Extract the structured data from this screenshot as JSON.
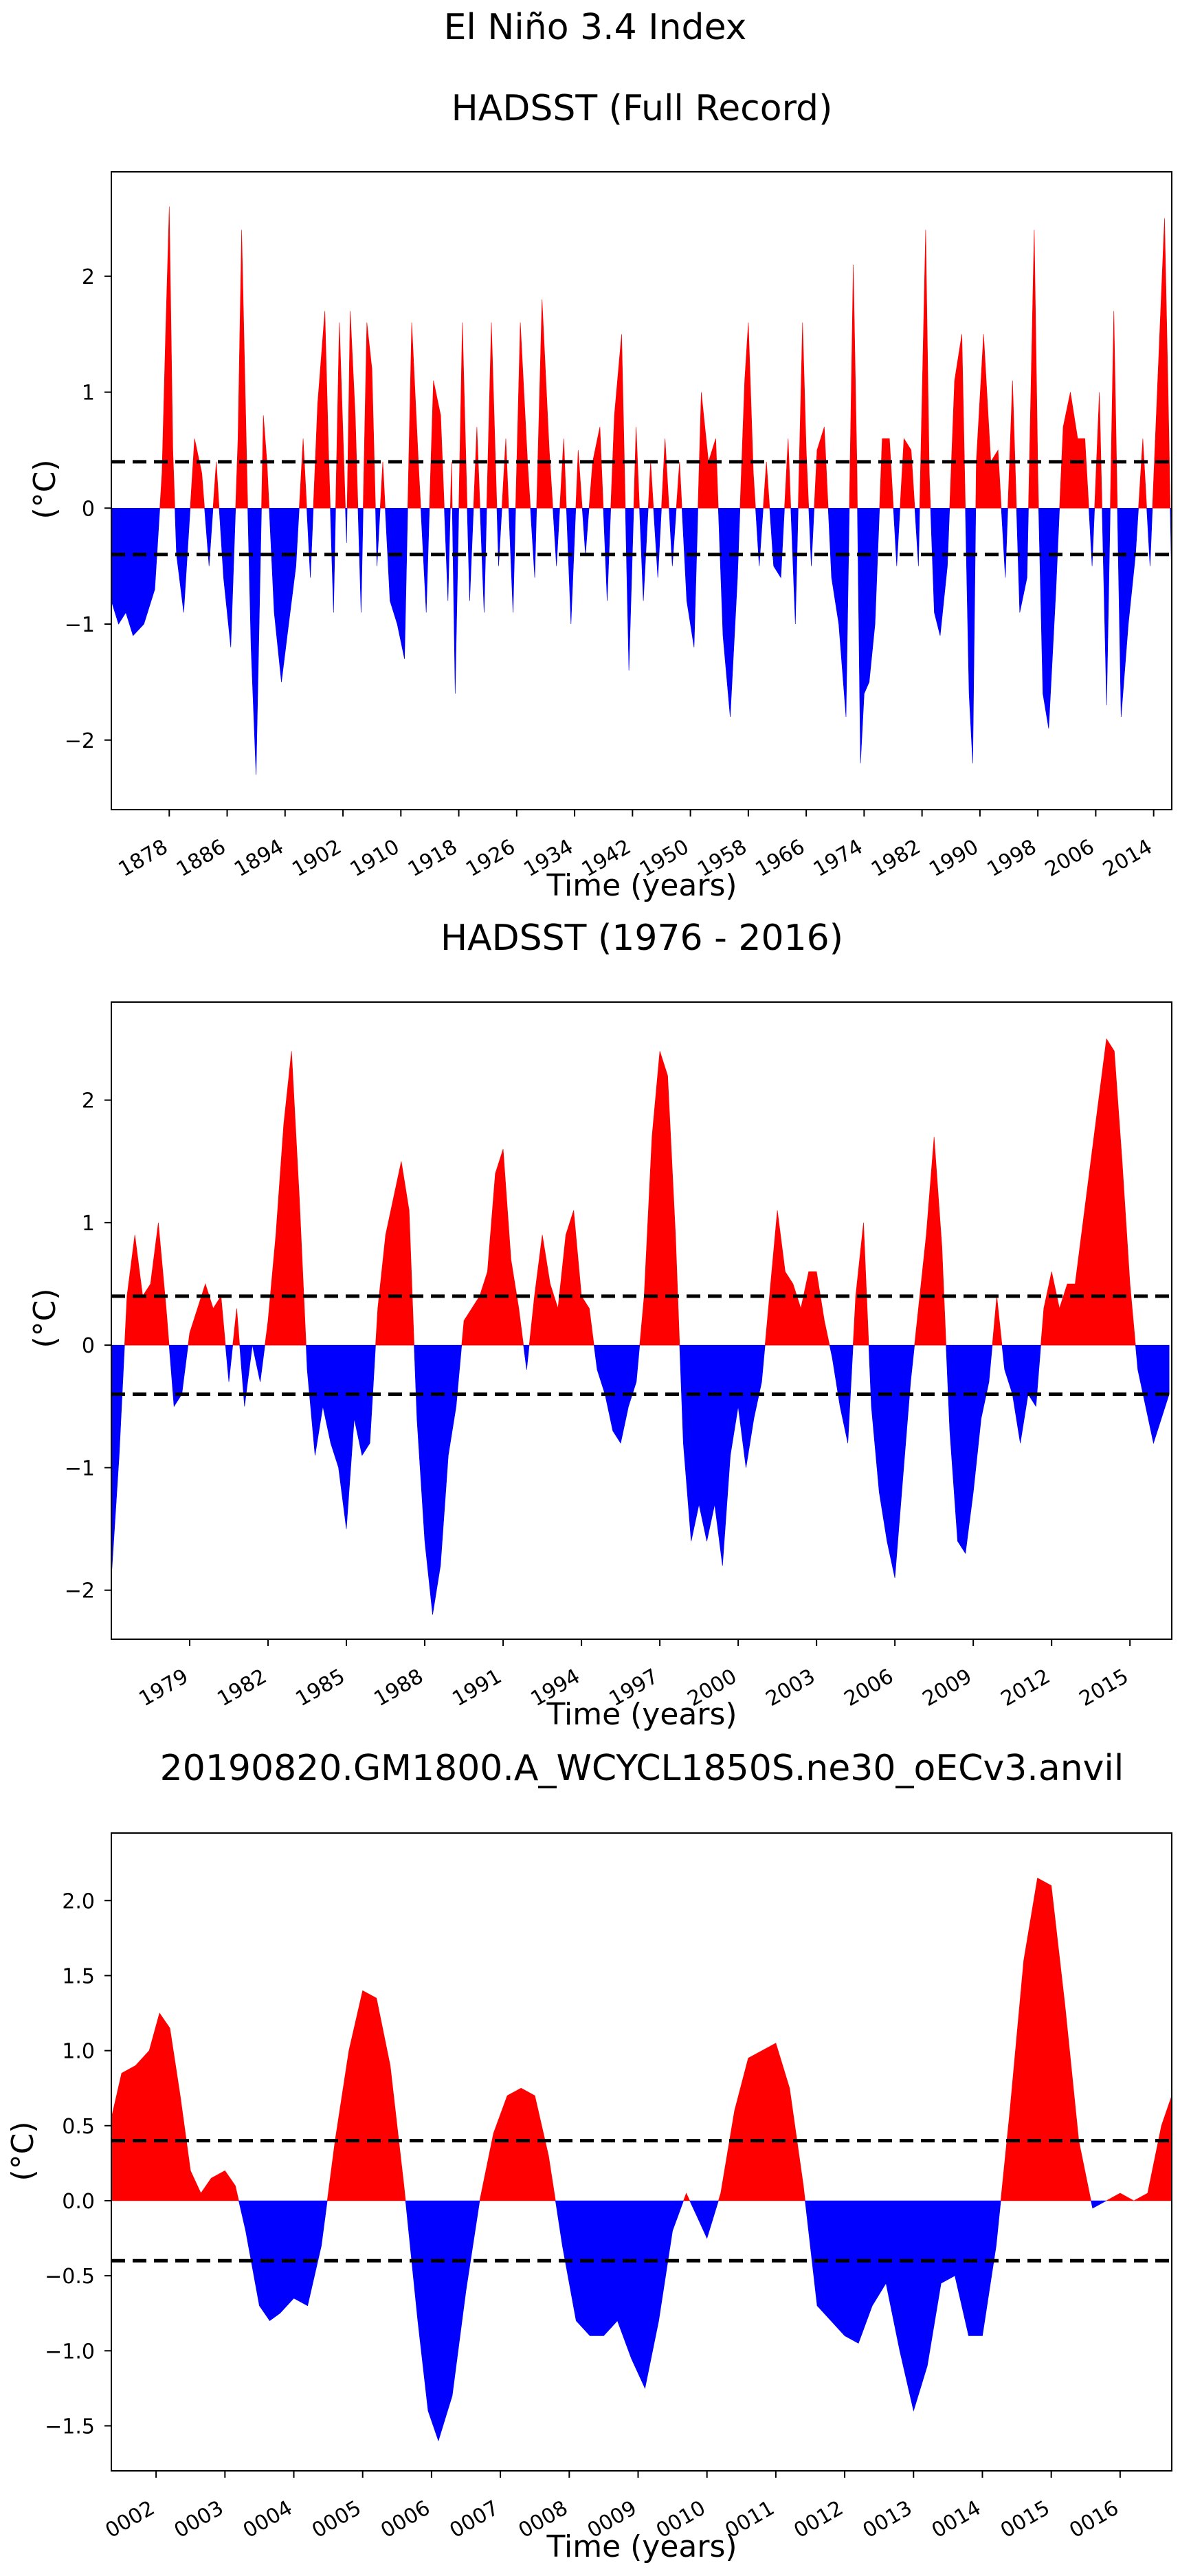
{
  "figure": {
    "suptitle": "El Niño 3.4 Index"
  },
  "colors": {
    "positive": "#ff0000",
    "negative": "#0000ff",
    "threshold_line": "#000000",
    "background": "#ffffff"
  },
  "chart_data": [
    {
      "type": "area",
      "title": "HADSST (Full Record)",
      "xlabel": "Time (years)",
      "ylabel": "(°C)",
      "xlim": [
        1870.0,
        2016.5
      ],
      "ylim": [
        -2.6,
        2.9
      ],
      "yticks": [
        -2,
        -1,
        0,
        1,
        2
      ],
      "ytick_labels": [
        "−2",
        "−1",
        "0",
        "1",
        "2"
      ],
      "xticks": [
        1878,
        1886,
        1894,
        1902,
        1910,
        1918,
        1926,
        1934,
        1942,
        1950,
        1958,
        1966,
        1974,
        1982,
        1990,
        1998,
        2006,
        2014
      ],
      "xtick_labels": [
        "1878",
        "1886",
        "1894",
        "1902",
        "1910",
        "1918",
        "1926",
        "1934",
        "1942",
        "1950",
        "1958",
        "1966",
        "1974",
        "1982",
        "1990",
        "1998",
        "2006",
        "2014"
      ],
      "thresholds": [
        0.4,
        -0.4
      ],
      "grid": false,
      "series": [
        {
          "x": [
            1870.0,
            1871.0,
            1872.0,
            1873.0,
            1874.5,
            1876.0,
            1877.0,
            1877.5,
            1878.0,
            1878.5,
            1879.0,
            1880.0,
            1880.7,
            1881.5,
            1882.5,
            1883.5,
            1884.5,
            1885.5,
            1886.5,
            1887.5,
            1888.0,
            1888.7,
            1889.3,
            1890.0,
            1891.0,
            1891.5,
            1892.5,
            1893.5,
            1894.5,
            1895.5,
            1896.5,
            1897.5,
            1898.5,
            1899.5,
            1900.0,
            1900.7,
            1901.5,
            1902.5,
            1903.0,
            1903.7,
            1904.5,
            1905.3,
            1906.0,
            1906.7,
            1907.5,
            1908.5,
            1909.5,
            1910.5,
            1911.5,
            1912.5,
            1913.5,
            1914.5,
            1915.5,
            1916.5,
            1917.0,
            1917.5,
            1918.5,
            1919.5,
            1920.5,
            1921.5,
            1922.5,
            1923.5,
            1924.5,
            1925.5,
            1926.5,
            1927.5,
            1928.5,
            1929.5,
            1930.5,
            1931.5,
            1932.5,
            1933.5,
            1934.5,
            1935.5,
            1936.5,
            1937.5,
            1938.5,
            1939.5,
            1940.5,
            1941.5,
            1942.5,
            1943.5,
            1944.5,
            1945.5,
            1946.5,
            1947.5,
            1948.5,
            1949.5,
            1950.5,
            1951.5,
            1952.5,
            1953.5,
            1954.5,
            1955.5,
            1956.5,
            1957.5,
            1958.0,
            1958.7,
            1959.5,
            1960.5,
            1961.5,
            1962.5,
            1963.5,
            1964.5,
            1965.5,
            1966.0,
            1966.7,
            1967.5,
            1968.5,
            1969.5,
            1970.5,
            1971.5,
            1972.5,
            1973.0,
            1973.5,
            1974.0,
            1974.7,
            1975.5,
            1976.5,
            1977.5,
            1978.5,
            1979.5,
            1980.5,
            1981.5,
            1982.5,
            1983.0,
            1983.7,
            1984.5,
            1985.5,
            1986.5,
            1987.5,
            1988.5,
            1989.0,
            1989.5,
            1990.5,
            1991.5,
            1992.5,
            1993.5,
            1994.5,
            1995.5,
            1996.5,
            1997.5,
            1998.0,
            1998.7,
            1999.5,
            2000.5,
            2001.5,
            2002.5,
            2003.5,
            2004.5,
            2005.5,
            2006.5,
            2007.5,
            2008.5,
            2009.5,
            2010.5,
            2011.5,
            2012.5,
            2013.5,
            2014.5,
            2015.5,
            2016.0,
            2016.5
          ],
          "y": [
            -0.8,
            -1.0,
            -0.9,
            -1.1,
            -1.0,
            -0.7,
            0.3,
            1.5,
            2.6,
            0.5,
            -0.4,
            -0.9,
            -0.2,
            0.6,
            0.3,
            -0.5,
            0.4,
            -0.6,
            -1.2,
            0.6,
            2.4,
            0.4,
            -1.2,
            -2.3,
            0.8,
            0.4,
            -0.9,
            -1.5,
            -1.0,
            -0.5,
            0.6,
            -0.6,
            0.9,
            1.7,
            0.5,
            -0.9,
            1.6,
            -0.3,
            1.7,
            0.8,
            -0.9,
            1.6,
            1.2,
            -0.5,
            0.4,
            -0.8,
            -1.0,
            -1.3,
            1.6,
            0.3,
            -0.9,
            1.1,
            0.8,
            -0.8,
            0.4,
            -1.6,
            1.6,
            -0.8,
            0.7,
            -0.9,
            1.6,
            -0.5,
            0.6,
            -0.9,
            1.6,
            0.4,
            -0.6,
            1.8,
            0.5,
            -0.5,
            0.6,
            -1.0,
            0.5,
            -0.4,
            0.4,
            0.7,
            -0.8,
            0.8,
            1.5,
            -1.4,
            0.7,
            -0.8,
            0.4,
            -0.6,
            0.6,
            -0.5,
            0.4,
            -0.8,
            -1.2,
            1.0,
            0.4,
            0.6,
            -1.1,
            -1.8,
            -0.6,
            1.1,
            1.6,
            0.3,
            -0.5,
            0.4,
            -0.5,
            -0.6,
            0.6,
            -1.0,
            1.6,
            0.5,
            -0.5,
            0.5,
            0.7,
            -0.6,
            -1.0,
            -1.8,
            2.1,
            0.4,
            -2.2,
            -1.6,
            -1.5,
            -1.0,
            0.6,
            0.6,
            -0.5,
            0.6,
            0.5,
            -0.5,
            2.4,
            0.3,
            -0.9,
            -1.1,
            -0.5,
            1.1,
            1.5,
            -1.6,
            -2.2,
            0.4,
            1.5,
            0.4,
            0.5,
            -0.6,
            1.1,
            -0.9,
            -0.6,
            2.4,
            0.3,
            -1.6,
            -1.9,
            -0.7,
            0.7,
            1.0,
            0.6,
            0.6,
            -0.5,
            1.0,
            -1.7,
            1.7,
            -1.8,
            -1.0,
            -0.4,
            0.6,
            -0.5,
            1.0,
            2.5,
            1.0,
            -0.7
          ]
        }
      ]
    },
    {
      "type": "area",
      "title": "HADSST (1976 - 2016)",
      "xlabel": "Time (years)",
      "ylabel": "(°C)",
      "xlim": [
        1976.0,
        2016.6
      ],
      "ylim": [
        -2.4,
        2.8
      ],
      "yticks": [
        -2,
        -1,
        0,
        1,
        2
      ],
      "ytick_labels": [
        "−2",
        "−1",
        "0",
        "1",
        "2"
      ],
      "xticks": [
        1979,
        1982,
        1985,
        1988,
        1991,
        1994,
        1997,
        2000,
        2003,
        2006,
        2009,
        2012,
        2015
      ],
      "xtick_labels": [
        "1979",
        "1982",
        "1985",
        "1988",
        "1991",
        "1994",
        "1997",
        "2000",
        "2003",
        "2006",
        "2009",
        "2012",
        "2015"
      ],
      "thresholds": [
        0.4,
        -0.4
      ],
      "grid": false,
      "series": [
        {
          "x": [
            1976.0,
            1976.3,
            1976.6,
            1976.9,
            1977.2,
            1977.5,
            1977.8,
            1978.1,
            1978.4,
            1978.7,
            1979.0,
            1979.3,
            1979.6,
            1979.9,
            1980.2,
            1980.5,
            1980.8,
            1981.1,
            1981.4,
            1981.7,
            1982.0,
            1982.3,
            1982.6,
            1982.9,
            1983.2,
            1983.5,
            1983.8,
            1984.1,
            1984.4,
            1984.7,
            1985.0,
            1985.3,
            1985.6,
            1985.9,
            1986.2,
            1986.5,
            1986.8,
            1987.1,
            1987.4,
            1987.7,
            1988.0,
            1988.3,
            1988.6,
            1988.9,
            1989.2,
            1989.5,
            1989.8,
            1990.1,
            1990.4,
            1990.7,
            1991.0,
            1991.3,
            1991.6,
            1991.9,
            1992.2,
            1992.5,
            1992.8,
            1993.1,
            1993.4,
            1993.7,
            1994.0,
            1994.3,
            1994.6,
            1994.9,
            1995.2,
            1995.5,
            1995.8,
            1996.1,
            1996.4,
            1996.7,
            1997.0,
            1997.3,
            1997.6,
            1997.9,
            1998.2,
            1998.5,
            1998.8,
            1999.1,
            1999.4,
            1999.7,
            2000.0,
            2000.3,
            2000.6,
            2000.9,
            2001.2,
            2001.5,
            2001.8,
            2002.1,
            2002.4,
            2002.7,
            2003.0,
            2003.3,
            2003.6,
            2003.9,
            2004.2,
            2004.5,
            2004.8,
            2005.1,
            2005.4,
            2005.7,
            2006.0,
            2006.3,
            2006.6,
            2006.9,
            2007.2,
            2007.5,
            2007.8,
            2008.1,
            2008.4,
            2008.7,
            2009.0,
            2009.3,
            2009.6,
            2009.9,
            2010.2,
            2010.5,
            2010.8,
            2011.1,
            2011.4,
            2011.7,
            2012.0,
            2012.3,
            2012.6,
            2012.9,
            2013.2,
            2013.5,
            2013.8,
            2014.1,
            2014.4,
            2014.7,
            2015.0,
            2015.3,
            2015.6,
            2015.9,
            2016.2,
            2016.5
          ],
          "y": [
            -1.9,
            -0.9,
            0.4,
            0.9,
            0.4,
            0.5,
            1.0,
            0.3,
            -0.5,
            -0.4,
            0.1,
            0.3,
            0.5,
            0.3,
            0.4,
            -0.3,
            0.3,
            -0.5,
            0.0,
            -0.3,
            0.2,
            0.9,
            1.8,
            2.4,
            1.2,
            -0.2,
            -0.9,
            -0.5,
            -0.8,
            -1.0,
            -1.5,
            -0.6,
            -0.9,
            -0.8,
            0.3,
            0.9,
            1.2,
            1.5,
            1.1,
            -0.6,
            -1.6,
            -2.2,
            -1.8,
            -0.9,
            -0.5,
            0.2,
            0.3,
            0.4,
            0.6,
            1.4,
            1.6,
            0.7,
            0.3,
            -0.2,
            0.4,
            0.9,
            0.5,
            0.3,
            0.9,
            1.1,
            0.4,
            0.3,
            -0.2,
            -0.4,
            -0.7,
            -0.8,
            -0.5,
            -0.3,
            0.4,
            1.7,
            2.4,
            2.2,
            0.9,
            -0.8,
            -1.6,
            -1.3,
            -1.6,
            -1.3,
            -1.8,
            -0.9,
            -0.5,
            -1.0,
            -0.6,
            -0.3,
            0.4,
            1.1,
            0.6,
            0.5,
            0.3,
            0.6,
            0.6,
            0.2,
            -0.1,
            -0.5,
            -0.8,
            0.4,
            1.0,
            -0.5,
            -1.2,
            -1.6,
            -1.9,
            -1.1,
            -0.3,
            0.3,
            0.9,
            1.7,
            0.8,
            -0.7,
            -1.6,
            -1.7,
            -1.2,
            -0.6,
            -0.3,
            0.4,
            -0.2,
            -0.4,
            -0.8,
            -0.4,
            -0.5,
            0.3,
            0.6,
            0.3,
            0.5,
            0.5,
            1.0,
            1.5,
            2.0,
            2.5,
            2.4,
            1.5,
            0.5,
            -0.2,
            -0.5,
            -0.8,
            -0.6,
            -0.4
          ]
        }
      ]
    },
    {
      "type": "area",
      "title": "20190820.GM1800.A_WCYCL1850S.ne30_oECv3.anvil",
      "xlabel": "Time (years)",
      "ylabel": "(°C)",
      "xlim": [
        1.35,
        16.75
      ],
      "ylim": [
        -1.8,
        2.45
      ],
      "yticks": [
        -1.5,
        -1.0,
        -0.5,
        0.0,
        0.5,
        1.0,
        1.5,
        2.0
      ],
      "ytick_labels": [
        "−1.5",
        "−1.0",
        "−0.5",
        "0.0",
        "0.5",
        "1.0",
        "1.5",
        "2.0"
      ],
      "xticks": [
        2,
        3,
        4,
        5,
        6,
        7,
        8,
        9,
        10,
        11,
        12,
        13,
        14,
        15,
        16
      ],
      "xtick_labels": [
        "0002",
        "0003",
        "0004",
        "0005",
        "0006",
        "0007",
        "0008",
        "0009",
        "0010",
        "0011",
        "0012",
        "0013",
        "0014",
        "0015",
        "0016"
      ],
      "thresholds": [
        0.4,
        -0.4
      ],
      "grid": false,
      "series": [
        {
          "x": [
            1.35,
            1.5,
            1.7,
            1.9,
            2.05,
            2.2,
            2.35,
            2.5,
            2.65,
            2.8,
            3.0,
            3.15,
            3.3,
            3.5,
            3.65,
            3.8,
            4.0,
            4.2,
            4.4,
            4.6,
            4.8,
            5.0,
            5.2,
            5.4,
            5.6,
            5.8,
            5.95,
            6.1,
            6.3,
            6.5,
            6.7,
            6.9,
            7.1,
            7.3,
            7.5,
            7.7,
            7.9,
            8.1,
            8.3,
            8.5,
            8.7,
            8.9,
            9.1,
            9.3,
            9.5,
            9.7,
            9.85,
            10.0,
            10.2,
            10.4,
            10.6,
            10.8,
            11.0,
            11.2,
            11.4,
            11.6,
            11.8,
            12.0,
            12.2,
            12.4,
            12.6,
            12.8,
            13.0,
            13.2,
            13.4,
            13.6,
            13.8,
            14.0,
            14.2,
            14.4,
            14.6,
            14.8,
            15.0,
            15.2,
            15.4,
            15.6,
            15.8,
            16.0,
            16.2,
            16.4,
            16.6,
            16.75
          ],
          "y": [
            0.55,
            0.85,
            0.9,
            1.0,
            1.25,
            1.15,
            0.7,
            0.2,
            0.05,
            0.15,
            0.2,
            0.1,
            -0.2,
            -0.7,
            -0.8,
            -0.75,
            -0.65,
            -0.7,
            -0.3,
            0.4,
            1.0,
            1.4,
            1.35,
            0.9,
            0.1,
            -0.8,
            -1.4,
            -1.6,
            -1.3,
            -0.6,
            0.0,
            0.45,
            0.7,
            0.75,
            0.7,
            0.3,
            -0.3,
            -0.8,
            -0.9,
            -0.9,
            -0.8,
            -1.05,
            -1.25,
            -0.8,
            -0.2,
            0.05,
            -0.1,
            -0.25,
            0.05,
            0.6,
            0.95,
            1.0,
            1.05,
            0.75,
            0.1,
            -0.7,
            -0.8,
            -0.9,
            -0.95,
            -0.7,
            -0.55,
            -1.0,
            -1.4,
            -1.1,
            -0.55,
            -0.5,
            -0.9,
            -0.9,
            -0.3,
            0.6,
            1.6,
            2.15,
            2.1,
            1.3,
            0.4,
            -0.05,
            0.0,
            0.05,
            0.0,
            0.05,
            0.5,
            0.7
          ]
        }
      ]
    }
  ]
}
